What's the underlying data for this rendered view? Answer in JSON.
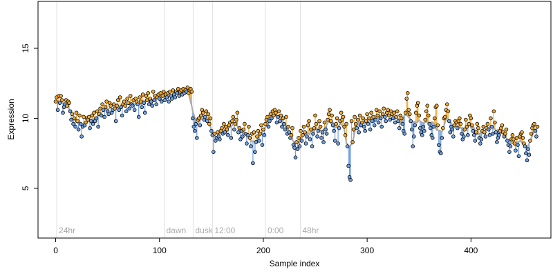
{
  "chart_data": {
    "type": "line",
    "x_label": "Sample index",
    "y_label": "Expression",
    "xlim": [
      -17,
      477
    ],
    "ylim": [
      1.45,
      18.35
    ],
    "xticks": [
      0,
      100,
      200,
      300,
      400
    ],
    "yticks": [
      5,
      10,
      15
    ],
    "above_color": "#f0a830",
    "below_color": "#6f9fe0",
    "trend_color": "#aaaaaa",
    "annotations": [
      {
        "x": 1,
        "label": "24hr"
      },
      {
        "x": 104.5,
        "label": "dawn"
      },
      {
        "x": 132.4,
        "label": "dusk"
      },
      {
        "x": 151,
        "label": "12:00"
      },
      {
        "x": 202,
        "label": "0:00"
      },
      {
        "x": 235.6,
        "label": "48hr"
      }
    ],
    "values": [
      11.2,
      11.5,
      10.6,
      11.6,
      11.1,
      11.6,
      11.3,
      10.4,
      10.8,
      11.0,
      11.3,
      10.9,
      11.2,
      11.1,
      10.5,
      9.9,
      10.3,
      9.6,
      10.0,
      9.4,
      10.4,
      9.8,
      9.2,
      10.2,
      9.6,
      8.7,
      9.4,
      10.1,
      9.5,
      9.7,
      10.0,
      9.9,
      10.1,
      9.3,
      9.8,
      10.2,
      9.6,
      10.4,
      9.8,
      10.0,
      10.5,
      9.4,
      10.3,
      10.7,
      10.2,
      11.0,
      10.6,
      10.1,
      10.8,
      11.2,
      10.5,
      10.3,
      11.1,
      10.9,
      10.4,
      10.6,
      11.0,
      10.7,
      9.8,
      10.9,
      11.3,
      10.6,
      11.5,
      10.8,
      10.2,
      11.0,
      11.2,
      10.9,
      10.5,
      11.4,
      11.1,
      10.7,
      11.6,
      11.0,
      10.9,
      11.3,
      10.6,
      11.4,
      11.2,
      11.0,
      10.1,
      11.5,
      11.2,
      10.8,
      11.7,
      11.1,
      10.4,
      11.6,
      11.3,
      11.8,
      11.0,
      11.4,
      11.2,
      10.9,
      11.9,
      11.3,
      11.6,
      11.0,
      11.5,
      11.7,
      11.4,
      11.8,
      11.2,
      11.6,
      11.9,
      11.3,
      11.7,
      11.5,
      11.8,
      11.2,
      11.9,
      11.6,
      11.4,
      12.0,
      11.7,
      11.5,
      11.9,
      11.8,
      12.1,
      11.6,
      11.9,
      12.0,
      11.7,
      12.1,
      11.8,
      12.0,
      11.9,
      12.2,
      11.8,
      12.0,
      12.1,
      11.9,
      10.0,
      9.4,
      9.1,
      9.6,
      8.6,
      9.9,
      10.0,
      9.5,
      10.2,
      10.6,
      10.4,
      9.9,
      10.1,
      10.5,
      9.8,
      10.3,
      9.6,
      10.0,
      9.1,
      8.8,
      7.6,
      8.9,
      8.4,
      8.6,
      9.0,
      8.7,
      8.5,
      9.1,
      9.3,
      8.9,
      9.6,
      9.0,
      9.4,
      9.2,
      8.8,
      9.5,
      9.7,
      8.6,
      9.8,
      10.1,
      9.2,
      9.6,
      9.9,
      10.4,
      9.0,
      9.3,
      8.5,
      9.1,
      8.7,
      9.2,
      9.6,
      8.9,
      8.2,
      8.8,
      9.4,
      8.6,
      8.0,
      8.9,
      6.8,
      9.0,
      7.6,
      8.3,
      8.7,
      9.1,
      8.4,
      8.9,
      9.5,
      8.1,
      9.2,
      8.8,
      9.6,
      9.9,
      10.1,
      9.4,
      9.8,
      10.3,
      10.0,
      10.5,
      10.2,
      10.6,
      10.4,
      9.7,
      10.1,
      10.5,
      9.8,
      10.2,
      9.4,
      10.0,
      9.6,
      9.2,
      10.1,
      8.9,
      9.4,
      9.0,
      8.6,
      8.8,
      9.3,
      8.1,
      7.9,
      7.2,
      8.3,
      7.8,
      8.6,
      8.0,
      9.1,
      8.4,
      8.8,
      9.4,
      9.0,
      8.2,
      8.7,
      9.5,
      9.8,
      8.5,
      9.2,
      8.0,
      8.9,
      9.3,
      10.2,
      9.6,
      8.7,
      9.1,
      9.8,
      9.4,
      8.6,
      9.0,
      8.3,
      9.7,
      9.2,
      8.9,
      9.9,
      10.3,
      10.6,
      9.8,
      10.2,
      9.5,
      9.1,
      8.4,
      9.6,
      10.0,
      8.2,
      9.3,
      9.8,
      10.4,
      9.9,
      10.1,
      9.4,
      8.8,
      9.6,
      8.0,
      6.6,
      5.8,
      5.6,
      9.8,
      8.3,
      9.2,
      10.1,
      9.6,
      9.3,
      9.9,
      9.0,
      10.2,
      9.5,
      9.7,
      10.0,
      9.4,
      9.1,
      9.8,
      10.3,
      9.6,
      10.0,
      9.2,
      10.4,
      9.8,
      10.1,
      9.5,
      9.9,
      10.6,
      10.2,
      9.7,
      10.5,
      10.0,
      9.4,
      10.3,
      10.7,
      10.1,
      9.8,
      10.4,
      10.6,
      10.2,
      9.9,
      10.5,
      10.3,
      10.0,
      10.4,
      9.7,
      10.1,
      10.5,
      9.8,
      9.3,
      10.2,
      10.0,
      9.6,
      9.1,
      8.9,
      10.4,
      11.4,
      11.8,
      10.6,
      10.3,
      9.8,
      9.2,
      8.0,
      8.7,
      9.5,
      10.4,
      10.9,
      11.1,
      10.2,
      9.3,
      9.0,
      8.8,
      9.4,
      9.1,
      9.9,
      10.5,
      10.9,
      10.2,
      9.6,
      9.3,
      8.8,
      8.6,
      9.4,
      10.0,
      10.8,
      10.9,
      9.5,
      8.1,
      7.6,
      7.5,
      8.6,
      9.3,
      10.0,
      10.1,
      10.6,
      11.0,
      10.5,
      9.8,
      9.0,
      9.4,
      9.2,
      8.7,
      9.5,
      9.8,
      9.7,
      9.3,
      9.8,
      10.0,
      9.6,
      8.9,
      8.5,
      8.7,
      9.2,
      9.9,
      9.4,
      8.8,
      9.6,
      10.2,
      10.0,
      9.5,
      9.1,
      8.8,
      8.4,
      9.0,
      9.6,
      9.3,
      8.6,
      8.2,
      8.5,
      9.1,
      9.4,
      9.0,
      8.7,
      9.3,
      9.6,
      9.2,
      8.8,
      10.0,
      9.4,
      8.9,
      10.5,
      9.7,
      9.0,
      8.3,
      8.6,
      8.8,
      9.1,
      9.3,
      9.5,
      9.0,
      8.7,
      8.9,
      9.2,
      8.4,
      8.1,
      7.6,
      8.0,
      8.5,
      8.8,
      8.5,
      8.2,
      7.7,
      8.6,
      8.1,
      7.3,
      8.7,
      8.9,
      9.0,
      8.6,
      8.2,
      8.0,
      7.5,
      7.0,
      7.8,
      7.4,
      8.4,
      8.9,
      9.3,
      9.5,
      9.6,
      9.1,
      8.7,
      9.4
    ]
  }
}
